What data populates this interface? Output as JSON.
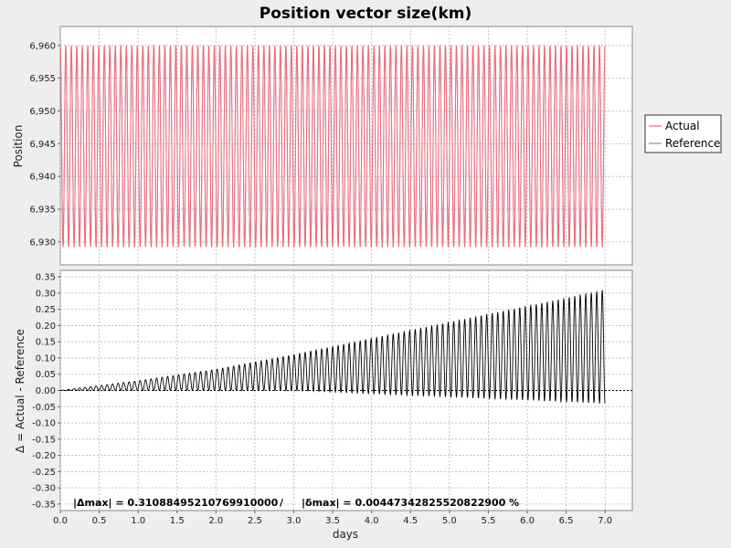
{
  "title": "Position vector size(km)",
  "colors": {
    "actual": "#ff6666",
    "reference": "#8888dd",
    "delta": "#000000",
    "grid": "#b4b4b4",
    "plot_bg": "#ffffff"
  },
  "legend": {
    "placement": "right",
    "items": [
      {
        "label": "Actual",
        "color": "#ff6666"
      },
      {
        "label": "Reference",
        "color": "#8888dd"
      }
    ]
  },
  "stats": {
    "delta_max": "|Δmax| = 0.31088495210769910000",
    "separator": "/",
    "rel_max": "|δmax| = 0.00447342825520822900 %"
  },
  "chart_data": [
    {
      "type": "line",
      "title": "Position vector size(km)",
      "xlabel": "",
      "ylabel": "Position",
      "xlim": [
        0,
        7.35
      ],
      "ylim": [
        6.9265,
        6.9629
      ],
      "grid": true,
      "yticks": [
        6.93,
        6.935,
        6.94,
        6.945,
        6.95,
        6.955,
        6.96
      ],
      "ytick_labels": [
        "6,930",
        "6,935",
        "6,940",
        "6,945",
        "6,950",
        "6,955",
        "6,960"
      ],
      "series": [
        {
          "name": "Actual",
          "description": "sinusoid between 6.9292 and 6.9600, period ~0.0707 days, 0 to 7.0 days"
        },
        {
          "name": "Reference",
          "description": "sinusoid between 6.9292 and 6.9600, period ~0.0707 days, 0 to 7.0 days"
        }
      ],
      "x_range": [
        0,
        7.0
      ],
      "y_min": 6.9292,
      "y_max": 6.96,
      "period_days": 0.0707
    },
    {
      "type": "line",
      "xlabel": "days",
      "ylabel": "Δ = Actual - Reference",
      "xlim": [
        0,
        7.35
      ],
      "ylim": [
        -0.37,
        0.37
      ],
      "grid": true,
      "xticks": [
        0.0,
        0.5,
        1.0,
        1.5,
        2.0,
        2.5,
        3.0,
        3.5,
        4.0,
        4.5,
        5.0,
        5.5,
        6.0,
        6.5,
        7.0
      ],
      "xtick_labels": [
        "0.0",
        "0.5",
        "1.0",
        "1.5",
        "2.0",
        "2.5",
        "3.0",
        "3.5",
        "4.0",
        "4.5",
        "5.0",
        "5.5",
        "6.0",
        "6.5",
        "7.0"
      ],
      "yticks": [
        -0.35,
        -0.3,
        -0.25,
        -0.2,
        -0.15,
        -0.1,
        -0.05,
        0.0,
        0.05,
        0.1,
        0.15,
        0.2,
        0.25,
        0.3,
        0.35
      ],
      "ytick_labels": [
        "-0.35",
        "-0.30",
        "-0.25",
        "-0.20",
        "-0.15",
        "-0.10",
        "-0.05",
        "0.00",
        "0.05",
        "0.10",
        "0.15",
        "0.20",
        "0.25",
        "0.30",
        "0.35"
      ],
      "series": [
        {
          "name": "Δ",
          "description": "oscillation with growing amplitude; upper envelope ~0 at day 0 to ~0.31 at day 7.0, lower envelope ~0 to ~-0.04"
        }
      ],
      "x_range": [
        0,
        7.0
      ],
      "upper_envelope": [
        [
          0,
          0.0
        ],
        [
          1,
          0.03
        ],
        [
          2,
          0.065
        ],
        [
          3,
          0.11
        ],
        [
          4,
          0.16
        ],
        [
          5,
          0.21
        ],
        [
          6,
          0.26
        ],
        [
          7,
          0.31
        ]
      ],
      "lower_envelope": [
        [
          0,
          0.0
        ],
        [
          3,
          0.0
        ],
        [
          5,
          -0.02
        ],
        [
          7,
          -0.04
        ]
      ],
      "period_days": 0.0707,
      "zero_line": true
    }
  ]
}
